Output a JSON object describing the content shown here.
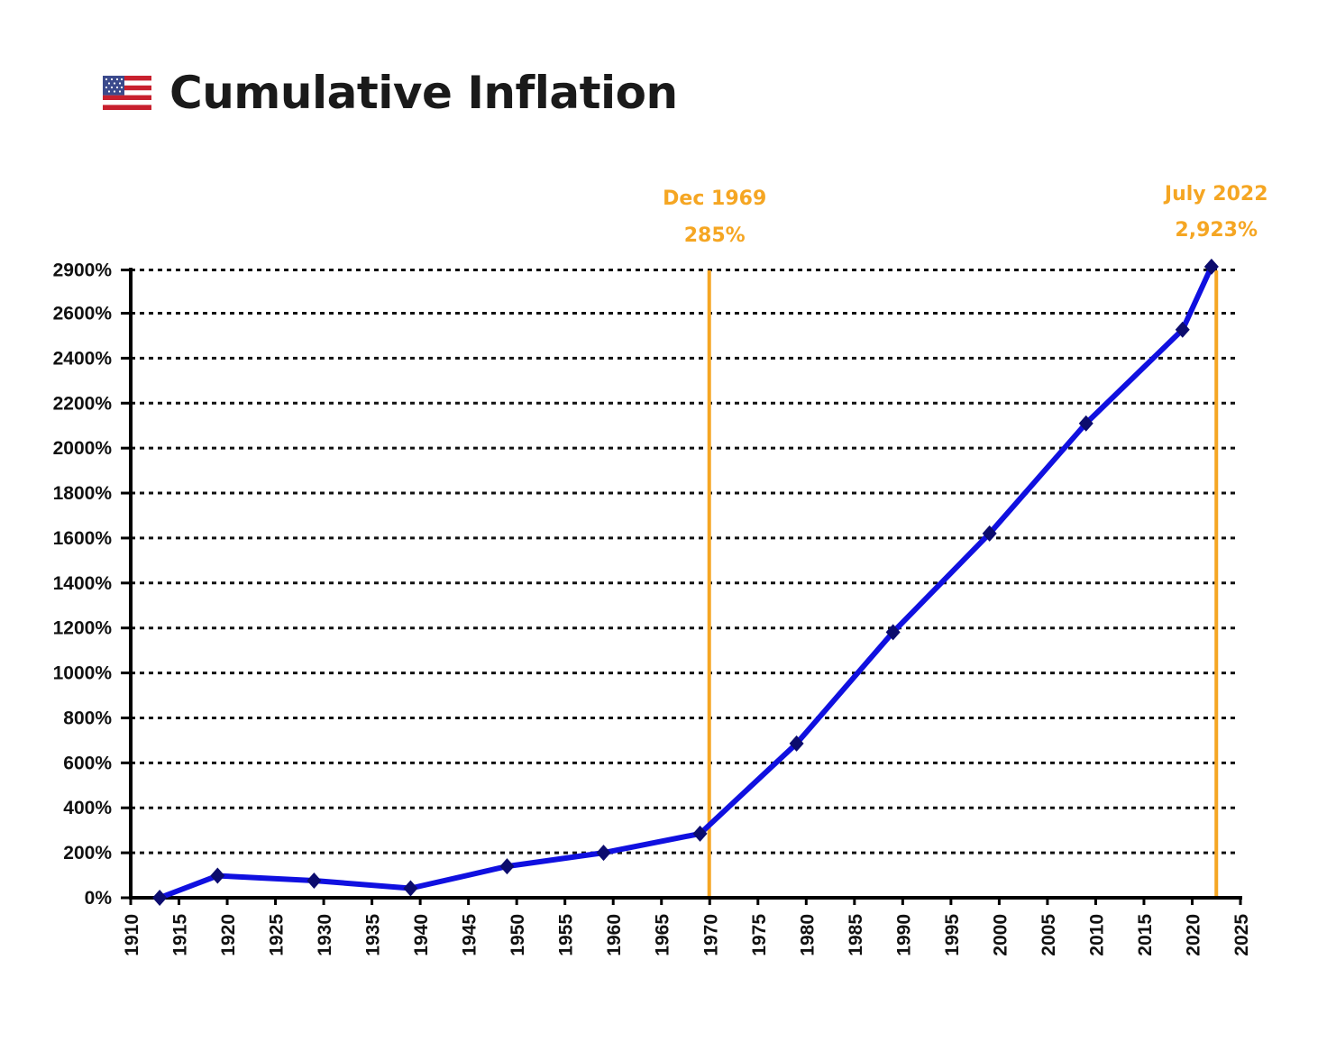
{
  "header": {
    "flag_icon": "us-flag-icon",
    "title": "Cumulative Inflation"
  },
  "colors": {
    "line": "#1010e0",
    "marker": "#0c0c6e",
    "annotation": "#f5a623",
    "grid": "#111111",
    "axis": "#000000"
  },
  "chart_data": {
    "type": "line",
    "title": "Cumulative Inflation",
    "xlabel": "",
    "ylabel": "",
    "xlim": [
      1910,
      2025
    ],
    "x_ticks": [
      1910,
      1915,
      1920,
      1925,
      1930,
      1935,
      1940,
      1945,
      1950,
      1955,
      1960,
      1965,
      1970,
      1975,
      1980,
      1985,
      1990,
      1995,
      2000,
      2005,
      2010,
      2015,
      2020,
      2025
    ],
    "y_ticks": [
      0,
      200,
      400,
      600,
      800,
      1000,
      1200,
      1400,
      1600,
      1800,
      2000,
      2200,
      2400,
      2600,
      2900
    ],
    "y_tick_labels": [
      "0%",
      "200%",
      "400%",
      "600%",
      "800%",
      "1000%",
      "1200%",
      "1400%",
      "1600%",
      "1800%",
      "2000%",
      "2200%",
      "2400%",
      "2600%",
      "2900%"
    ],
    "grid": true,
    "grid_style": "dotted",
    "series": [
      {
        "x": [
          1913,
          1919,
          1929,
          1939,
          1949,
          1959,
          1969,
          1979,
          1989,
          1999,
          2009,
          2019,
          2022
        ],
        "y": [
          0,
          98,
          76,
          42,
          140,
          200,
          285,
          686,
          1181,
          1620,
          2110,
          2527,
          2923
        ]
      }
    ],
    "annotations": [
      {
        "x": 1969.95,
        "line1": "Dec 1969",
        "line2": "285%"
      },
      {
        "x": 2022.5,
        "line1": "July 2022",
        "line2": "2,923%"
      }
    ]
  }
}
